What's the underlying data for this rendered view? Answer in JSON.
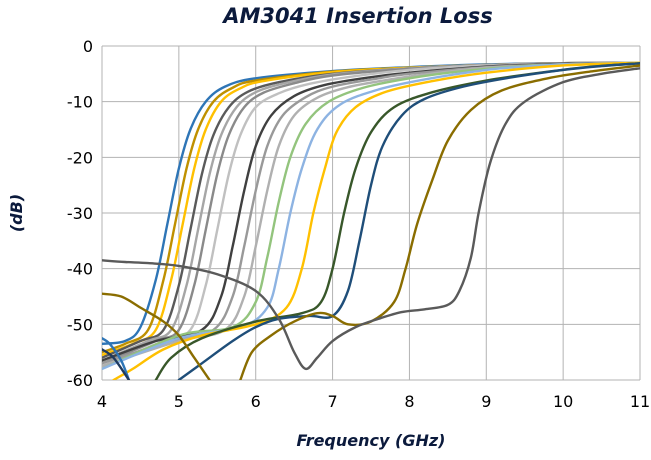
{
  "chart_data": {
    "type": "line",
    "title": "AM3041 Insertion Loss",
    "xlabel": "Frequency (GHz)",
    "ylabel": "(dB)",
    "xlim": [
      4,
      11
    ],
    "ylim": [
      -60,
      0
    ],
    "x_ticks": [
      "4",
      "5",
      "6",
      "7",
      "8",
      "9",
      "10",
      "11"
    ],
    "y_ticks": [
      "0",
      "-10",
      "-20",
      "-30",
      "-40",
      "-50",
      "-60"
    ],
    "grid": "vertical and horizontal major gridlines",
    "legend": "none",
    "series": [
      {
        "color": "#2e75b6",
        "points": [
          [
            4.0,
            -53.5
          ],
          [
            4.3,
            -53.0
          ],
          [
            4.5,
            -50.5
          ],
          [
            4.7,
            -42.0
          ],
          [
            4.85,
            -32.0
          ],
          [
            5.0,
            -22.0
          ],
          [
            5.15,
            -15.0
          ],
          [
            5.35,
            -10.0
          ],
          [
            5.6,
            -7.3
          ],
          [
            6.0,
            -5.8
          ],
          [
            7.0,
            -4.5
          ],
          [
            8.0,
            -3.8
          ],
          [
            9.0,
            -3.3
          ],
          [
            10.0,
            -3.1
          ],
          [
            11.0,
            -3.0
          ]
        ]
      },
      {
        "color": "#bf9000",
        "points": [
          [
            4.0,
            -55.0
          ],
          [
            4.3,
            -53.5
          ],
          [
            4.6,
            -51.0
          ],
          [
            4.8,
            -42.0
          ],
          [
            4.95,
            -32.0
          ],
          [
            5.1,
            -22.0
          ],
          [
            5.25,
            -15.0
          ],
          [
            5.45,
            -10.0
          ],
          [
            5.7,
            -7.5
          ],
          [
            6.0,
            -6.2
          ],
          [
            7.0,
            -4.6
          ],
          [
            8.0,
            -3.9
          ],
          [
            9.0,
            -3.4
          ],
          [
            10.0,
            -3.1
          ],
          [
            11.0,
            -3.0
          ]
        ]
      },
      {
        "color": "#ffc000",
        "points": [
          [
            4.0,
            -55.5
          ],
          [
            4.4,
            -53.5
          ],
          [
            4.7,
            -51.0
          ],
          [
            4.9,
            -42.0
          ],
          [
            5.05,
            -32.0
          ],
          [
            5.2,
            -22.0
          ],
          [
            5.35,
            -15.0
          ],
          [
            5.55,
            -10.0
          ],
          [
            5.8,
            -7.6
          ],
          [
            6.1,
            -6.3
          ],
          [
            7.0,
            -4.7
          ],
          [
            8.0,
            -3.9
          ],
          [
            9.0,
            -3.4
          ],
          [
            10.0,
            -3.1
          ],
          [
            11.0,
            -3.0
          ]
        ]
      },
      {
        "color": "#5a5a5a",
        "points": [
          [
            4.0,
            -56.0
          ],
          [
            4.5,
            -53.0
          ],
          [
            4.8,
            -51.0
          ],
          [
            5.0,
            -43.0
          ],
          [
            5.15,
            -33.0
          ],
          [
            5.3,
            -23.0
          ],
          [
            5.45,
            -16.0
          ],
          [
            5.65,
            -11.0
          ],
          [
            5.9,
            -8.2
          ],
          [
            6.3,
            -6.5
          ],
          [
            7.0,
            -5.0
          ],
          [
            8.0,
            -4.0
          ],
          [
            9.0,
            -3.4
          ],
          [
            10.0,
            -3.1
          ],
          [
            11.0,
            -3.0
          ]
        ]
      },
      {
        "color": "#a6a6a6",
        "points": [
          [
            4.0,
            -56.5
          ],
          [
            4.6,
            -53.0
          ],
          [
            4.9,
            -51.0
          ],
          [
            5.1,
            -43.0
          ],
          [
            5.25,
            -33.0
          ],
          [
            5.4,
            -23.0
          ],
          [
            5.55,
            -16.0
          ],
          [
            5.75,
            -11.0
          ],
          [
            6.0,
            -8.3
          ],
          [
            6.4,
            -6.6
          ],
          [
            7.0,
            -5.1
          ],
          [
            8.0,
            -4.0
          ],
          [
            9.0,
            -3.4
          ],
          [
            10.0,
            -3.1
          ],
          [
            11.0,
            -3.0
          ]
        ]
      },
      {
        "color": "#8a8a8a",
        "points": [
          [
            4.0,
            -57.0
          ],
          [
            4.7,
            -53.0
          ],
          [
            5.0,
            -51.0
          ],
          [
            5.2,
            -43.0
          ],
          [
            5.35,
            -33.0
          ],
          [
            5.5,
            -23.0
          ],
          [
            5.65,
            -16.0
          ],
          [
            5.85,
            -11.0
          ],
          [
            6.1,
            -8.4
          ],
          [
            6.5,
            -6.7
          ],
          [
            7.0,
            -5.3
          ],
          [
            8.0,
            -4.1
          ],
          [
            9.0,
            -3.5
          ],
          [
            10.0,
            -3.1
          ],
          [
            11.0,
            -3.0
          ]
        ]
      },
      {
        "color": "#c0c0c0",
        "points": [
          [
            4.0,
            -57.5
          ],
          [
            4.8,
            -53.0
          ],
          [
            5.15,
            -51.0
          ],
          [
            5.35,
            -43.0
          ],
          [
            5.5,
            -33.0
          ],
          [
            5.65,
            -23.0
          ],
          [
            5.8,
            -16.0
          ],
          [
            6.0,
            -11.0
          ],
          [
            6.3,
            -8.5
          ],
          [
            6.7,
            -6.8
          ],
          [
            7.3,
            -5.4
          ],
          [
            8.0,
            -4.3
          ],
          [
            9.0,
            -3.5
          ],
          [
            10.0,
            -3.2
          ],
          [
            11.0,
            -3.0
          ]
        ]
      },
      {
        "color": "#404040",
        "points": [
          [
            4.0,
            -56.5
          ],
          [
            4.7,
            -53.0
          ],
          [
            5.3,
            -51.0
          ],
          [
            5.55,
            -45.0
          ],
          [
            5.7,
            -36.0
          ],
          [
            5.85,
            -26.0
          ],
          [
            6.0,
            -18.0
          ],
          [
            6.2,
            -12.5
          ],
          [
            6.5,
            -9.0
          ],
          [
            6.9,
            -7.0
          ],
          [
            7.5,
            -5.6
          ],
          [
            8.0,
            -4.8
          ],
          [
            9.0,
            -3.7
          ],
          [
            10.0,
            -3.2
          ],
          [
            11.0,
            -3.0
          ]
        ]
      },
      {
        "color": "#999999",
        "points": [
          [
            4.0,
            -57.0
          ],
          [
            4.9,
            -53.0
          ],
          [
            5.45,
            -51.0
          ],
          [
            5.7,
            -45.0
          ],
          [
            5.85,
            -36.0
          ],
          [
            6.0,
            -26.0
          ],
          [
            6.15,
            -18.0
          ],
          [
            6.35,
            -12.5
          ],
          [
            6.65,
            -9.2
          ],
          [
            7.0,
            -7.3
          ],
          [
            7.6,
            -5.8
          ],
          [
            8.0,
            -5.0
          ],
          [
            9.0,
            -3.8
          ],
          [
            10.0,
            -3.3
          ],
          [
            11.0,
            -3.0
          ]
        ]
      },
      {
        "color": "#b0b0b0",
        "points": [
          [
            4.0,
            -57.5
          ],
          [
            5.0,
            -53.0
          ],
          [
            5.6,
            -51.0
          ],
          [
            5.85,
            -45.0
          ],
          [
            6.0,
            -36.0
          ],
          [
            6.15,
            -26.0
          ],
          [
            6.3,
            -18.0
          ],
          [
            6.5,
            -12.5
          ],
          [
            6.8,
            -9.3
          ],
          [
            7.2,
            -7.4
          ],
          [
            7.8,
            -5.9
          ],
          [
            8.5,
            -4.6
          ],
          [
            9.0,
            -3.9
          ],
          [
            10.0,
            -3.3
          ],
          [
            11.0,
            -3.0
          ]
        ]
      },
      {
        "color": "#93c47d",
        "points": [
          [
            4.0,
            -58.0
          ],
          [
            5.0,
            -52.0
          ],
          [
            5.7,
            -50.5
          ],
          [
            6.0,
            -46.0
          ],
          [
            6.15,
            -38.0
          ],
          [
            6.3,
            -28.0
          ],
          [
            6.45,
            -20.0
          ],
          [
            6.65,
            -14.0
          ],
          [
            6.95,
            -10.0
          ],
          [
            7.4,
            -7.5
          ],
          [
            8.0,
            -5.8
          ],
          [
            8.7,
            -4.5
          ],
          [
            9.5,
            -3.6
          ],
          [
            10.0,
            -3.3
          ],
          [
            11.0,
            -3.0
          ]
        ]
      },
      {
        "color": "#8db3e2",
        "points": [
          [
            4.0,
            -58.0
          ],
          [
            5.0,
            -52.5
          ],
          [
            5.8,
            -50.5
          ],
          [
            6.15,
            -47.0
          ],
          [
            6.3,
            -40.0
          ],
          [
            6.45,
            -30.0
          ],
          [
            6.6,
            -22.0
          ],
          [
            6.8,
            -15.0
          ],
          [
            7.1,
            -10.5
          ],
          [
            7.6,
            -7.8
          ],
          [
            8.2,
            -6.0
          ],
          [
            9.0,
            -4.3
          ],
          [
            9.5,
            -3.7
          ],
          [
            10.0,
            -3.3
          ],
          [
            11.0,
            -3.0
          ]
        ]
      },
      {
        "color": "#ffc000",
        "points": [
          [
            4.15,
            -60.0
          ],
          [
            4.4,
            -58.0
          ],
          [
            4.8,
            -54.5
          ],
          [
            5.3,
            -52.0
          ],
          [
            6.0,
            -50.0
          ],
          [
            6.4,
            -47.0
          ],
          [
            6.6,
            -40.0
          ],
          [
            6.75,
            -30.0
          ],
          [
            6.9,
            -22.0
          ],
          [
            7.05,
            -15.5
          ],
          [
            7.3,
            -11.0
          ],
          [
            7.7,
            -8.2
          ],
          [
            8.3,
            -6.3
          ],
          [
            9.0,
            -4.8
          ],
          [
            10.0,
            -3.5
          ],
          [
            11.0,
            -3.0
          ]
        ]
      },
      {
        "color": "#38572a",
        "points": [
          [
            4.7,
            -60.0
          ],
          [
            4.9,
            -56.0
          ],
          [
            5.3,
            -52.5
          ],
          [
            6.0,
            -49.5
          ],
          [
            6.6,
            -48.0
          ],
          [
            6.85,
            -46.0
          ],
          [
            7.0,
            -40.0
          ],
          [
            7.15,
            -30.0
          ],
          [
            7.3,
            -22.0
          ],
          [
            7.5,
            -15.5
          ],
          [
            7.8,
            -11.0
          ],
          [
            8.3,
            -8.3
          ],
          [
            9.0,
            -6.2
          ],
          [
            9.7,
            -4.8
          ],
          [
            10.3,
            -3.8
          ],
          [
            11.0,
            -3.1
          ]
        ]
      },
      {
        "color": "#1f4e79",
        "points": [
          [
            5.0,
            -60.0
          ],
          [
            5.3,
            -57.0
          ],
          [
            5.7,
            -53.0
          ],
          [
            6.0,
            -50.5
          ],
          [
            6.3,
            -49.0
          ],
          [
            6.7,
            -48.5
          ],
          [
            7.0,
            -48.5
          ],
          [
            7.2,
            -44.0
          ],
          [
            7.35,
            -35.0
          ],
          [
            7.5,
            -25.0
          ],
          [
            7.65,
            -18.0
          ],
          [
            7.9,
            -12.5
          ],
          [
            8.2,
            -9.5
          ],
          [
            8.7,
            -7.3
          ],
          [
            9.3,
            -5.7
          ],
          [
            10.0,
            -4.3
          ],
          [
            10.5,
            -3.6
          ],
          [
            11.0,
            -3.1
          ]
        ]
      },
      {
        "color": "#8a6d00",
        "points": [
          [
            5.8,
            -60.0
          ],
          [
            5.95,
            -55.0
          ],
          [
            6.2,
            -52.0
          ],
          [
            6.5,
            -49.5
          ],
          [
            6.8,
            -48.0
          ],
          [
            7.0,
            -48.5
          ],
          [
            7.2,
            -50.0
          ],
          [
            7.5,
            -49.5
          ],
          [
            7.8,
            -46.0
          ],
          [
            7.95,
            -40.0
          ],
          [
            8.1,
            -32.0
          ],
          [
            8.3,
            -24.0
          ],
          [
            8.5,
            -17.0
          ],
          [
            8.8,
            -11.5
          ],
          [
            9.2,
            -8.0
          ],
          [
            9.8,
            -5.8
          ],
          [
            10.4,
            -4.5
          ],
          [
            11.0,
            -3.5
          ]
        ]
      },
      {
        "color": "#5a5a5a",
        "points": [
          [
            4.0,
            -38.5
          ],
          [
            4.3,
            -38.8
          ],
          [
            4.6,
            -39.0
          ],
          [
            5.0,
            -39.5
          ],
          [
            5.5,
            -41.0
          ],
          [
            6.0,
            -44.0
          ],
          [
            6.3,
            -49.0
          ],
          [
            6.5,
            -55.0
          ],
          [
            6.65,
            -58.0
          ],
          [
            6.8,
            -56.0
          ],
          [
            7.0,
            -53.0
          ],
          [
            7.3,
            -50.5
          ],
          [
            7.6,
            -49.0
          ],
          [
            7.9,
            -47.8
          ],
          [
            8.2,
            -47.3
          ],
          [
            8.5,
            -46.5
          ],
          [
            8.65,
            -44.0
          ],
          [
            8.8,
            -38.0
          ],
          [
            8.9,
            -30.0
          ],
          [
            9.05,
            -21.0
          ],
          [
            9.25,
            -14.0
          ],
          [
            9.5,
            -10.0
          ],
          [
            10.0,
            -6.5
          ],
          [
            10.5,
            -5.0
          ],
          [
            11.0,
            -4.0
          ]
        ]
      },
      {
        "color": "#8a6d00",
        "points": [
          [
            4.0,
            -44.5
          ],
          [
            4.25,
            -45.0
          ],
          [
            4.5,
            -47.0
          ],
          [
            4.8,
            -49.5
          ],
          [
            5.0,
            -52.0
          ],
          [
            5.2,
            -56.0
          ],
          [
            5.4,
            -60.0
          ]
        ]
      },
      {
        "color": "#2e75b6",
        "points": [
          [
            4.0,
            -52.5
          ],
          [
            4.1,
            -53.5
          ],
          [
            4.25,
            -56.5
          ],
          [
            4.35,
            -60.0
          ]
        ]
      },
      {
        "color": "#1f3a5f",
        "points": [
          [
            4.0,
            -54.5
          ],
          [
            4.15,
            -56.0
          ],
          [
            4.35,
            -60.0
          ]
        ]
      }
    ]
  }
}
